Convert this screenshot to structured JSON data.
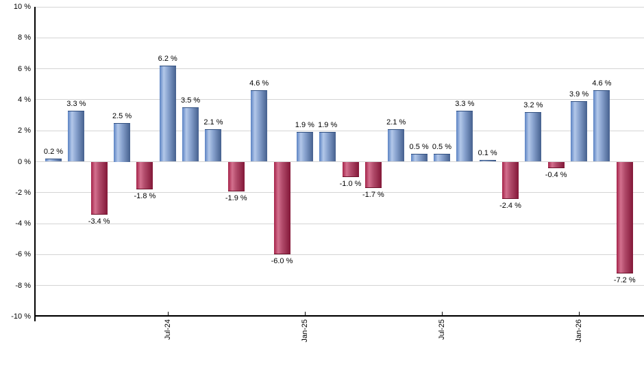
{
  "chart": {
    "background_color": "#ffffff",
    "grid_color": "#d4d4d4",
    "axis_color": "#000000",
    "text_color": "#000000"
  },
  "chart_data": {
    "type": "bar",
    "title": "",
    "xlabel": "",
    "ylabel": "",
    "unit": "%",
    "grid": true,
    "legend": false,
    "values": [
      0.2,
      3.3,
      -3.4,
      2.5,
      -1.8,
      6.2,
      3.5,
      2.1,
      -1.9,
      4.6,
      -6.0,
      1.9,
      1.9,
      -1.0,
      -1.7,
      2.1,
      0.5,
      0.5,
      3.3,
      0.1,
      -2.4,
      3.2,
      -0.4,
      3.9,
      4.6,
      -7.2
    ],
    "value_labels": [
      "0.2 %",
      "3.3 %",
      "-3.4 %",
      "2.5 %",
      "-1.8 %",
      "6.2 %",
      "3.5 %",
      "2.1 %",
      "-1.9 %",
      "4.6 %",
      "-6.0 %",
      "1.9 %",
      "1.9 %",
      "-1.0 %",
      "-1.7 %",
      "2.1 %",
      "0.5 %",
      "0.5 %",
      "3.3 %",
      "0.1 %",
      "-2.4 %",
      "3.2 %",
      "-0.4 %",
      "3.9 %",
      "4.6 %",
      "-7.2 %"
    ],
    "x_tick_labels": [
      {
        "bar_index": 5,
        "label": "Jul-24"
      },
      {
        "bar_index": 11,
        "label": "Jan-25"
      },
      {
        "bar_index": 17,
        "label": "Jul-25"
      },
      {
        "bar_index": 23,
        "label": "Jan-26"
      }
    ],
    "y_axis": {
      "min": -10,
      "max": 10,
      "step": 2,
      "tick_labels": [
        "10 %",
        "8 %",
        "6 %",
        "4 %",
        "2 %",
        "0 %",
        "-2 %",
        "-4 %",
        "-6 %",
        "-8 %",
        "-10 %"
      ]
    },
    "bar_colors": {
      "positive_gradient": [
        "#5b82c3",
        "#b3c8e9",
        "#8aa4d0",
        "#45608e"
      ],
      "positive_edge": "#2e4d7e",
      "negative_gradient": [
        "#a42349",
        "#d3708e",
        "#b14b6a",
        "#831738"
      ],
      "negative_edge": "#6b1029"
    }
  }
}
